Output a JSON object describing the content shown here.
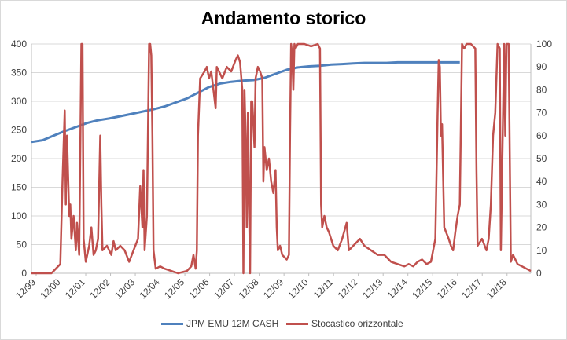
{
  "chart_data": {
    "type": "line",
    "title": "Andamento storico",
    "x_categories": [
      "12/99",
      "12/00",
      "12/01",
      "12/02",
      "12/03",
      "12/04",
      "12/05",
      "12/06",
      "12/07",
      "12/08",
      "12/09",
      "12/10",
      "12/11",
      "12/12",
      "12/13",
      "12/14",
      "12/15",
      "12/16",
      "12/17",
      "12/18"
    ],
    "y_left": {
      "min": 0,
      "max": 400,
      "step": 50,
      "ticks": [
        "0",
        "50",
        "100",
        "150",
        "200",
        "250",
        "300",
        "350",
        "400"
      ]
    },
    "y_right": {
      "min": 0,
      "max": 100,
      "step": 10,
      "ticks": [
        "0",
        "10",
        "20",
        "30",
        "40",
        "50",
        "60",
        "70",
        "80",
        "90",
        "100"
      ]
    },
    "grid": true,
    "legend_position": "bottom",
    "series": [
      {
        "name": "JPM EMU 12M CASH",
        "axis": "left",
        "color": "#4f81bd",
        "points": [
          [
            0,
            229
          ],
          [
            0.5,
            232
          ],
          [
            1,
            240
          ],
          [
            1.5,
            248
          ],
          [
            2,
            255
          ],
          [
            2.5,
            262
          ],
          [
            3,
            267
          ],
          [
            3.5,
            270
          ],
          [
            4,
            274
          ],
          [
            4.5,
            278
          ],
          [
            5,
            282
          ],
          [
            5.5,
            286
          ],
          [
            6,
            291
          ],
          [
            6.5,
            298
          ],
          [
            7,
            305
          ],
          [
            7.5,
            315
          ],
          [
            8,
            325
          ],
          [
            8.5,
            331
          ],
          [
            9,
            334
          ],
          [
            9.5,
            336
          ],
          [
            10,
            337
          ],
          [
            10.5,
            341
          ],
          [
            11,
            348
          ],
          [
            11.5,
            355
          ],
          [
            12,
            359
          ],
          [
            12.5,
            361
          ],
          [
            13,
            362
          ],
          [
            13.5,
            364
          ],
          [
            14,
            365
          ],
          [
            14.5,
            366
          ],
          [
            15,
            367
          ],
          [
            15.5,
            367
          ],
          [
            16,
            367
          ],
          [
            16.5,
            368
          ],
          [
            17,
            368
          ],
          [
            17.5,
            368
          ],
          [
            18,
            368
          ],
          [
            18.5,
            368
          ],
          [
            19,
            368
          ],
          [
            19.3,
            368
          ]
        ]
      },
      {
        "name": "Stocastico orizzontale",
        "axis": "right",
        "color": "#c0504d",
        "points": [
          [
            0,
            0
          ],
          [
            0.5,
            0
          ],
          [
            0.9,
            0
          ],
          [
            1.1,
            2
          ],
          [
            1.3,
            4
          ],
          [
            1.4,
            40
          ],
          [
            1.5,
            71
          ],
          [
            1.55,
            30
          ],
          [
            1.6,
            60
          ],
          [
            1.7,
            25
          ],
          [
            1.75,
            30
          ],
          [
            1.8,
            15
          ],
          [
            1.9,
            25
          ],
          [
            2,
            10
          ],
          [
            2.05,
            22
          ],
          [
            2.15,
            8
          ],
          [
            2.25,
            100
          ],
          [
            2.3,
            100
          ],
          [
            2.35,
            15
          ],
          [
            2.45,
            5
          ],
          [
            2.6,
            12
          ],
          [
            2.7,
            20
          ],
          [
            2.8,
            8
          ],
          [
            2.9,
            10
          ],
          [
            3,
            15
          ],
          [
            3.1,
            60
          ],
          [
            3.15,
            30
          ],
          [
            3.2,
            10
          ],
          [
            3.4,
            12
          ],
          [
            3.6,
            8
          ],
          [
            3.7,
            14
          ],
          [
            3.8,
            10
          ],
          [
            4,
            12
          ],
          [
            4.2,
            10
          ],
          [
            4.4,
            5
          ],
          [
            4.6,
            10
          ],
          [
            4.8,
            15
          ],
          [
            4.9,
            38
          ],
          [
            5,
            20
          ],
          [
            5.05,
            45
          ],
          [
            5.1,
            10
          ],
          [
            5.2,
            25
          ],
          [
            5.3,
            100
          ],
          [
            5.35,
            100
          ],
          [
            5.4,
            95
          ],
          [
            5.45,
            60
          ],
          [
            5.5,
            10
          ],
          [
            5.6,
            2
          ],
          [
            5.8,
            3
          ],
          [
            6,
            2
          ],
          [
            6.3,
            1
          ],
          [
            6.6,
            0
          ],
          [
            7,
            1
          ],
          [
            7.2,
            3
          ],
          [
            7.3,
            8
          ],
          [
            7.4,
            2
          ],
          [
            7.45,
            10
          ],
          [
            7.5,
            60
          ],
          [
            7.6,
            85
          ],
          [
            7.8,
            88
          ],
          [
            7.9,
            90
          ],
          [
            8,
            85
          ],
          [
            8.1,
            88
          ],
          [
            8.2,
            80
          ],
          [
            8.3,
            72
          ],
          [
            8.35,
            90
          ],
          [
            8.45,
            88
          ],
          [
            8.6,
            85
          ],
          [
            8.8,
            90
          ],
          [
            9,
            88
          ],
          [
            9.2,
            93
          ],
          [
            9.3,
            95
          ],
          [
            9.4,
            92
          ],
          [
            9.5,
            80
          ],
          [
            9.55,
            0
          ],
          [
            9.6,
            80
          ],
          [
            9.65,
            60
          ],
          [
            9.7,
            20
          ],
          [
            9.75,
            70
          ],
          [
            9.8,
            30
          ],
          [
            9.85,
            0
          ],
          [
            9.9,
            75
          ],
          [
            9.95,
            75
          ],
          [
            10.05,
            55
          ],
          [
            10.1,
            85
          ],
          [
            10.2,
            90
          ],
          [
            10.3,
            88
          ],
          [
            10.4,
            85
          ],
          [
            10.45,
            40
          ],
          [
            10.5,
            55
          ],
          [
            10.6,
            45
          ],
          [
            10.7,
            50
          ],
          [
            10.8,
            40
          ],
          [
            10.9,
            35
          ],
          [
            11,
            45
          ],
          [
            11.05,
            20
          ],
          [
            11.1,
            10
          ],
          [
            11.2,
            12
          ],
          [
            11.3,
            8
          ],
          [
            11.5,
            6
          ],
          [
            11.6,
            8
          ],
          [
            11.65,
            60
          ],
          [
            11.7,
            100
          ],
          [
            11.75,
            95
          ],
          [
            11.8,
            80
          ],
          [
            11.85,
            100
          ],
          [
            11.9,
            98
          ],
          [
            12,
            100
          ],
          [
            12.3,
            100
          ],
          [
            12.6,
            99
          ],
          [
            12.9,
            100
          ],
          [
            13,
            98
          ],
          [
            13.05,
            30
          ],
          [
            13.1,
            20
          ],
          [
            13.2,
            25
          ],
          [
            13.3,
            20
          ],
          [
            13.4,
            18
          ],
          [
            13.6,
            12
          ],
          [
            13.8,
            10
          ],
          [
            14,
            15
          ],
          [
            14.2,
            22
          ],
          [
            14.3,
            10
          ],
          [
            14.5,
            12
          ],
          [
            14.8,
            15
          ],
          [
            15,
            12
          ],
          [
            15.3,
            10
          ],
          [
            15.6,
            8
          ],
          [
            15.9,
            8
          ],
          [
            16.2,
            5
          ],
          [
            16.5,
            4
          ],
          [
            16.8,
            3
          ],
          [
            17,
            4
          ],
          [
            17.2,
            3
          ],
          [
            17.4,
            5
          ],
          [
            17.6,
            6
          ],
          [
            17.8,
            4
          ],
          [
            18,
            5
          ],
          [
            18.2,
            15
          ],
          [
            18.3,
            70
          ],
          [
            18.35,
            93
          ],
          [
            18.4,
            90
          ],
          [
            18.45,
            60
          ],
          [
            18.5,
            65
          ],
          [
            18.6,
            20
          ],
          [
            18.8,
            15
          ],
          [
            18.9,
            12
          ],
          [
            19.0,
            10
          ],
          [
            19.1,
            18
          ],
          [
            19.2,
            25
          ],
          [
            19.3,
            30
          ],
          [
            19.4,
            100
          ],
          [
            19.5,
            98
          ],
          [
            19.6,
            100
          ],
          [
            19.8,
            100
          ],
          [
            20,
            98
          ],
          [
            20.05,
            45
          ],
          [
            20.1,
            12
          ],
          [
            20.3,
            15
          ],
          [
            20.5,
            10
          ],
          [
            20.6,
            15
          ],
          [
            20.7,
            30
          ],
          [
            20.8,
            60
          ],
          [
            20.9,
            70
          ],
          [
            21,
            100
          ],
          [
            21.1,
            98
          ],
          [
            21.15,
            10
          ],
          [
            21.2,
            40
          ],
          [
            21.3,
            100
          ],
          [
            21.35,
            60
          ],
          [
            21.4,
            100
          ],
          [
            21.5,
            100
          ],
          [
            21.6,
            5
          ],
          [
            21.7,
            8
          ],
          [
            21.9,
            4
          ],
          [
            22.1,
            3
          ],
          [
            22.3,
            2
          ],
          [
            22.5,
            1
          ]
        ]
      }
    ]
  }
}
